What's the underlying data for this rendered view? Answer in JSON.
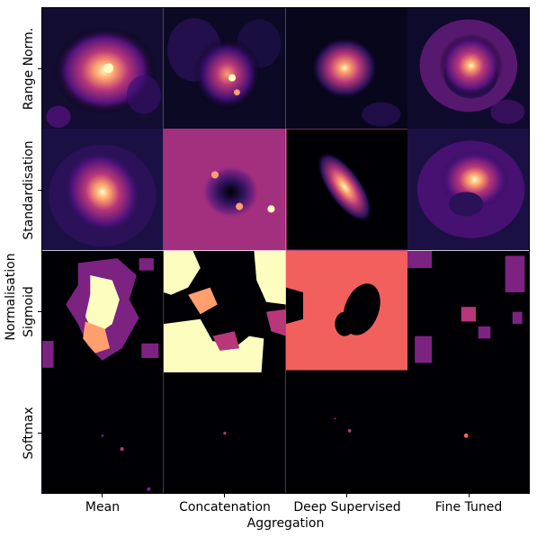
{
  "figure": {
    "xlabel": "Aggregation",
    "ylabel": "Normalisation",
    "columns": [
      "Mean",
      "Concatenation",
      "Deep Supervised",
      "Fine Tuned"
    ],
    "rows": [
      "Range Norm.",
      "Standardisation",
      "Sigmoid",
      "Softmax"
    ],
    "colormap": "magma",
    "colors": {
      "background": "#000004",
      "dark_purple": "#2a1158",
      "purple": "#7c2382",
      "magenta": "#b73779",
      "salmon": "#f1605d",
      "orange": "#fe9f6d",
      "cream": "#fcfdbf"
    }
  }
}
